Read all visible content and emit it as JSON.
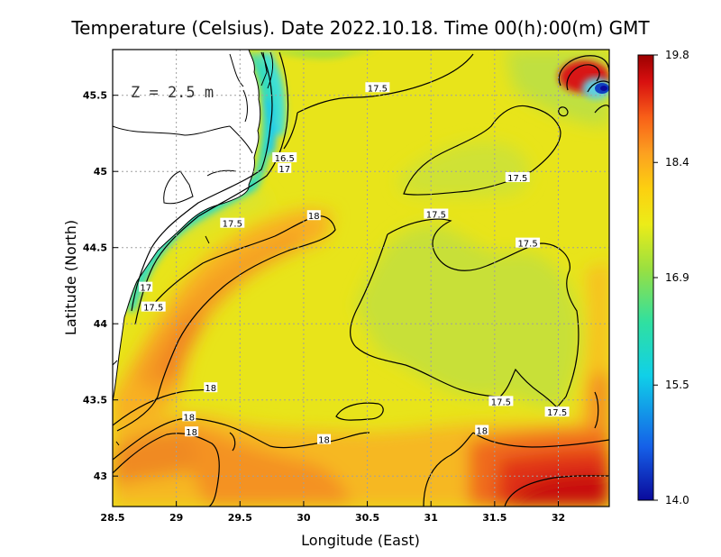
{
  "chart_data": {
    "type": "heatmap",
    "title": "Temperature (Celsius). Date 2022.10.18. Time 00(h):00(m) GMT",
    "xlabel": "Longitude (East)",
    "ylabel": "Latitude (North)",
    "depth_label": "Z = 2.5 m",
    "xlim": [
      28.5,
      32.4
    ],
    "ylim": [
      42.8,
      45.8
    ],
    "x_ticks": [
      "28.5",
      "29",
      "29.5",
      "30",
      "30.5",
      "31",
      "31.5",
      "32"
    ],
    "x_tick_values": [
      28.5,
      29,
      29.5,
      30,
      30.5,
      31,
      31.5,
      32
    ],
    "y_ticks": [
      "43",
      "43.5",
      "44",
      "44.5",
      "45",
      "45.5"
    ],
    "y_tick_values": [
      43,
      43.5,
      44,
      44.5,
      45,
      45.5
    ],
    "grid": true,
    "colorbar": {
      "min": 14.0,
      "max": 19.8,
      "labels": [
        "19.8",
        "18.4",
        "16.9",
        "15.5",
        "14.0"
      ],
      "label_values": [
        19.8,
        18.4,
        16.9,
        15.5,
        14.0
      ],
      "colors": [
        "#0a0a9c",
        "#1560e8",
        "#10d0e8",
        "#30e0a0",
        "#9ae040",
        "#ecec18",
        "#fcd010",
        "#fca020",
        "#f86018",
        "#d81010",
        "#9c0000"
      ]
    },
    "contour_labels": [
      {
        "text": "17.5",
        "lon": 30.58,
        "lat": 45.55
      },
      {
        "text": "16.5",
        "lon": 29.85,
        "lat": 45.09
      },
      {
        "text": "17",
        "lon": 29.85,
        "lat": 45.02
      },
      {
        "text": "17.5",
        "lon": 31.68,
        "lat": 44.96
      },
      {
        "text": "17.5",
        "lon": 29.44,
        "lat": 44.66
      },
      {
        "text": "18",
        "lon": 30.08,
        "lat": 44.71
      },
      {
        "text": "17.5",
        "lon": 31.04,
        "lat": 44.72
      },
      {
        "text": "17.5",
        "lon": 31.76,
        "lat": 44.53
      },
      {
        "text": "17",
        "lon": 28.76,
        "lat": 44.24
      },
      {
        "text": "17.5",
        "lon": 28.82,
        "lat": 44.11
      },
      {
        "text": "18",
        "lon": 29.27,
        "lat": 43.58
      },
      {
        "text": "17.5",
        "lon": 31.55,
        "lat": 43.49
      },
      {
        "text": "17.5",
        "lon": 31.99,
        "lat": 43.42
      },
      {
        "text": "18",
        "lon": 29.1,
        "lat": 43.39
      },
      {
        "text": "18",
        "lon": 29.12,
        "lat": 43.29
      },
      {
        "text": "18",
        "lon": 30.16,
        "lat": 43.24
      },
      {
        "text": "18",
        "lon": 31.4,
        "lat": 43.3
      }
    ]
  }
}
